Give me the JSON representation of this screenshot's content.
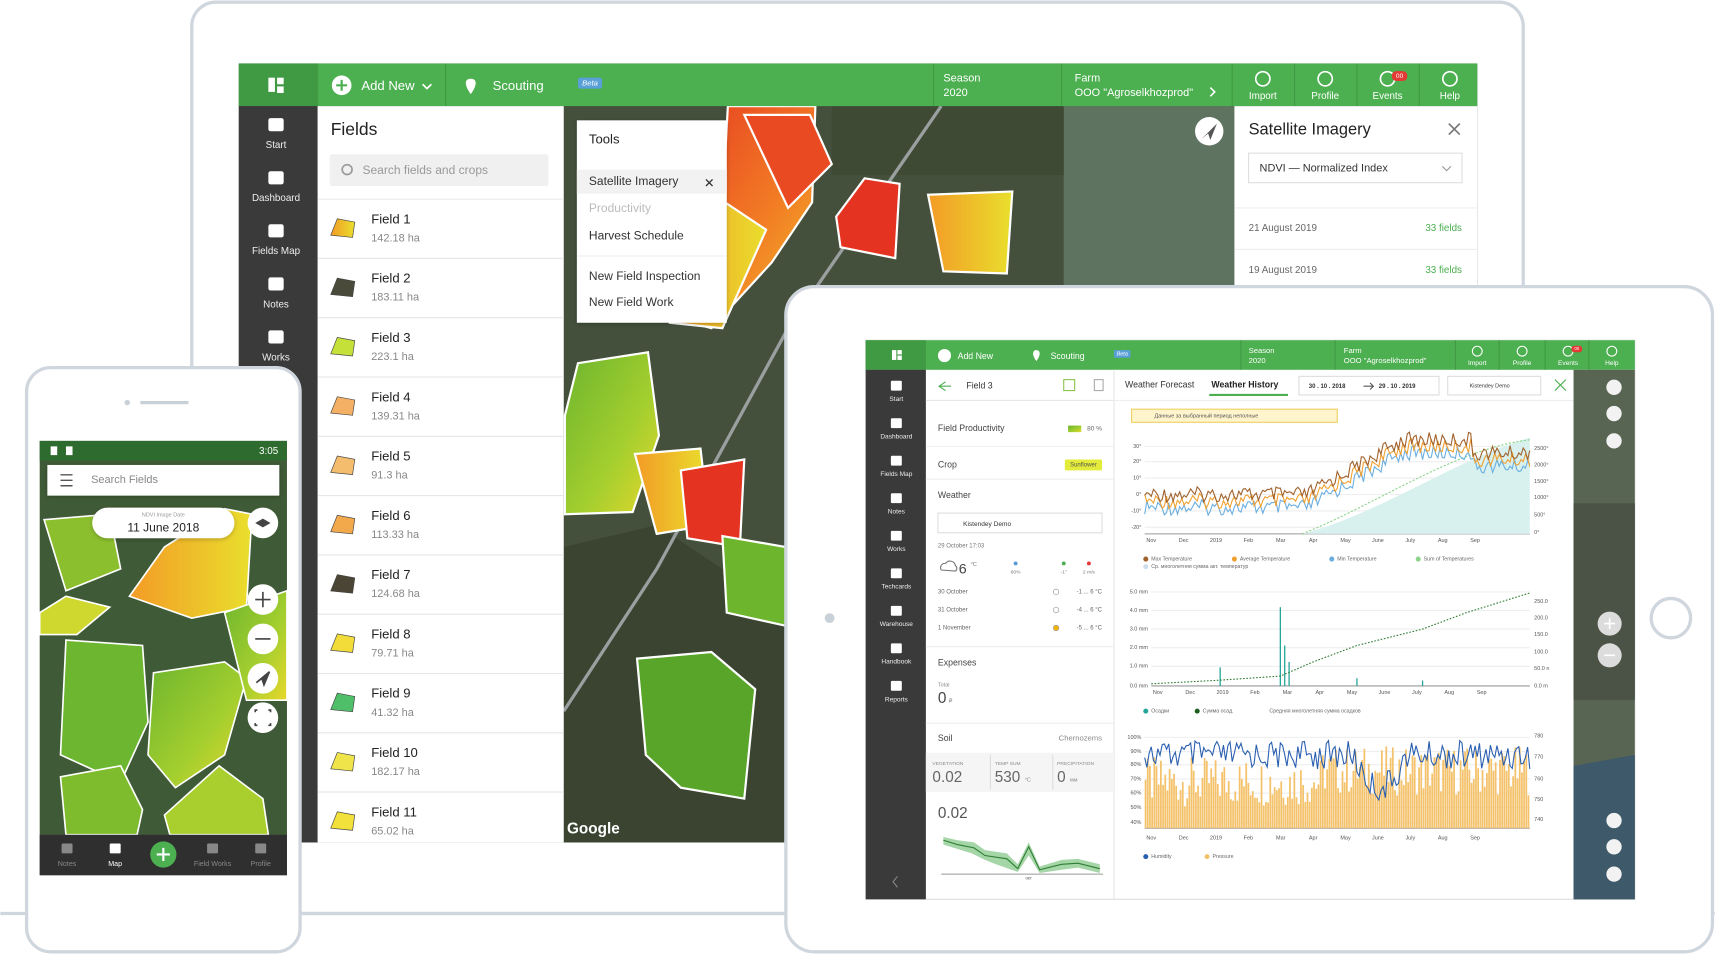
{
  "laptop": {
    "topbar": {
      "add_new": "Add New",
      "scouting": "Scouting",
      "beta": "Beta",
      "season_label": "Season",
      "season": "2020",
      "farm_label": "Farm",
      "farm": "OOO \"Agroselkhozprod\"",
      "actions": [
        "Import",
        "Profile",
        "Events",
        "Help"
      ],
      "events_badge": "00"
    },
    "sidebar": [
      "Start",
      "Dashboard",
      "Fields Map",
      "Notes",
      "Works"
    ],
    "fields": {
      "title": "Fields",
      "search": "Search fields and crops",
      "items": [
        {
          "name": "Field 1",
          "area": "142.18 ha"
        },
        {
          "name": "Field 2",
          "area": "183.11 ha"
        },
        {
          "name": "Field 3",
          "area": "223.1 ha"
        },
        {
          "name": "Field 4",
          "area": "139.31 ha"
        },
        {
          "name": "Field 5",
          "area": "91.3 ha"
        },
        {
          "name": "Field 6",
          "area": "113.33 ha"
        },
        {
          "name": "Field 7",
          "area": "124.68 ha"
        },
        {
          "name": "Field 8",
          "area": "79.71 ha"
        },
        {
          "name": "Field 9",
          "area": "41.32 ha"
        },
        {
          "name": "Field 10",
          "area": "182.17 ha"
        },
        {
          "name": "Field 11",
          "area": "65.02 ha"
        }
      ]
    },
    "tools": {
      "title": "Tools",
      "items": [
        "Satellite Imagery",
        "Productivity",
        "Harvest Schedule",
        "New Field Inspection",
        "New Field Work"
      ]
    },
    "map_credit": "Google",
    "satellite": {
      "title": "Satellite Imagery",
      "index": "NDVI — Normalized Index",
      "dates": [
        {
          "date": "21 August 2019",
          "count": "33 fields"
        },
        {
          "date": "19 August 2019",
          "count": "33 fields"
        }
      ]
    }
  },
  "phone": {
    "time": "3:05",
    "search": "Search Fields",
    "image_date_label": "NDVI Image Date",
    "image_date": "11 June 2018",
    "nav": [
      "Notes",
      "Map",
      "Field Works",
      "Profile"
    ]
  },
  "tablet": {
    "topbar": {
      "add_new": "Add New",
      "scouting": "Scouting",
      "beta": "Beta",
      "season_label": "Season",
      "season": "2020",
      "farm_label": "Farm",
      "farm": "OOO \"Agroselkhozprod\"",
      "actions": [
        "Import",
        "Profile",
        "Events",
        "Help"
      ],
      "events_badge": "00"
    },
    "sidebar": [
      "Start",
      "Dashboard",
      "Fields Map",
      "Notes",
      "Works",
      "Techcards",
      "Warehouse",
      "Handbook",
      "Reports"
    ],
    "field": {
      "name": "Field 3",
      "productivity_label": "Field Productivity",
      "productivity": "80 %",
      "crop_label": "Crop",
      "crop": "Sunflower",
      "weather_label": "Weather",
      "station": "Kistendey Demo",
      "datetime": "29 October   17:03",
      "temp": "6",
      "temp_unit": "°C",
      "now_stats": [
        "60%",
        "-1°",
        "2 m/s"
      ],
      "forecast": [
        {
          "date": "30 October",
          "range": "-1 ... 6 °C"
        },
        {
          "date": "31 October",
          "range": "-4 ... 6 °C"
        },
        {
          "date": "1 November",
          "range": "-5 ... 6 °C"
        }
      ],
      "expenses_label": "Expenses",
      "total_label": "Total",
      "total": "0",
      "currency": "₽",
      "soil_label": "Soil",
      "soil": "Chernozems",
      "soil_stats": [
        {
          "label": "VEGETATION",
          "value": "0.02"
        },
        {
          "label": "TEMP SUM",
          "value": "530",
          "unit": "°C"
        },
        {
          "label": "PRECIPITATION",
          "value": "0",
          "unit": "мм"
        }
      ],
      "ndvi": "0.02",
      "ndvi_axis": "окт"
    },
    "charts": {
      "tabs": [
        "Weather Forecast",
        "Weather History"
      ],
      "range_from": "30 . 10 . 2018",
      "range_to": "29 . 10 . 2019",
      "station": "Kistendey Demo",
      "warning": "Данные за выбранный период неполные",
      "months": [
        "Nov",
        "Dec",
        "2019",
        "Feb",
        "Mar",
        "Apr",
        "May",
        "June",
        "July",
        "Aug",
        "Sep"
      ],
      "temperature": {
        "left_ticks": [
          "30°",
          "20°",
          "10°",
          "0°",
          "-10°",
          "-20°"
        ],
        "right_ticks": [
          "2500°",
          "2000°",
          "1500°",
          "1000°",
          "500°",
          "0°"
        ],
        "legend": [
          "Max Temperature",
          "Average Temperature",
          "Min Temperature",
          "Sum of Temperatures",
          "Ср. многолетняя сумма акт. температур"
        ]
      },
      "precipitation": {
        "left_ticks": [
          "5.0 mm",
          "4.0 mm",
          "3.0 mm",
          "2.0 mm",
          "1.0 mm",
          "0.0 mm"
        ],
        "right_ticks": [
          "250.0",
          "200.0",
          "150.0",
          "100.0",
          "50.0 n",
          "0.0 m"
        ],
        "legend": [
          "Осадки",
          "Сумма осад.",
          "Средняя многолетняя сумма осадков"
        ]
      },
      "humidity": {
        "left_ticks": [
          "100%",
          "90%",
          "80%",
          "70%",
          "60%",
          "50%",
          "40%"
        ],
        "right_ticks": [
          "780",
          "770",
          "760",
          "750",
          "740"
        ],
        "legend": [
          "Humidity",
          "Pressure"
        ]
      }
    }
  }
}
